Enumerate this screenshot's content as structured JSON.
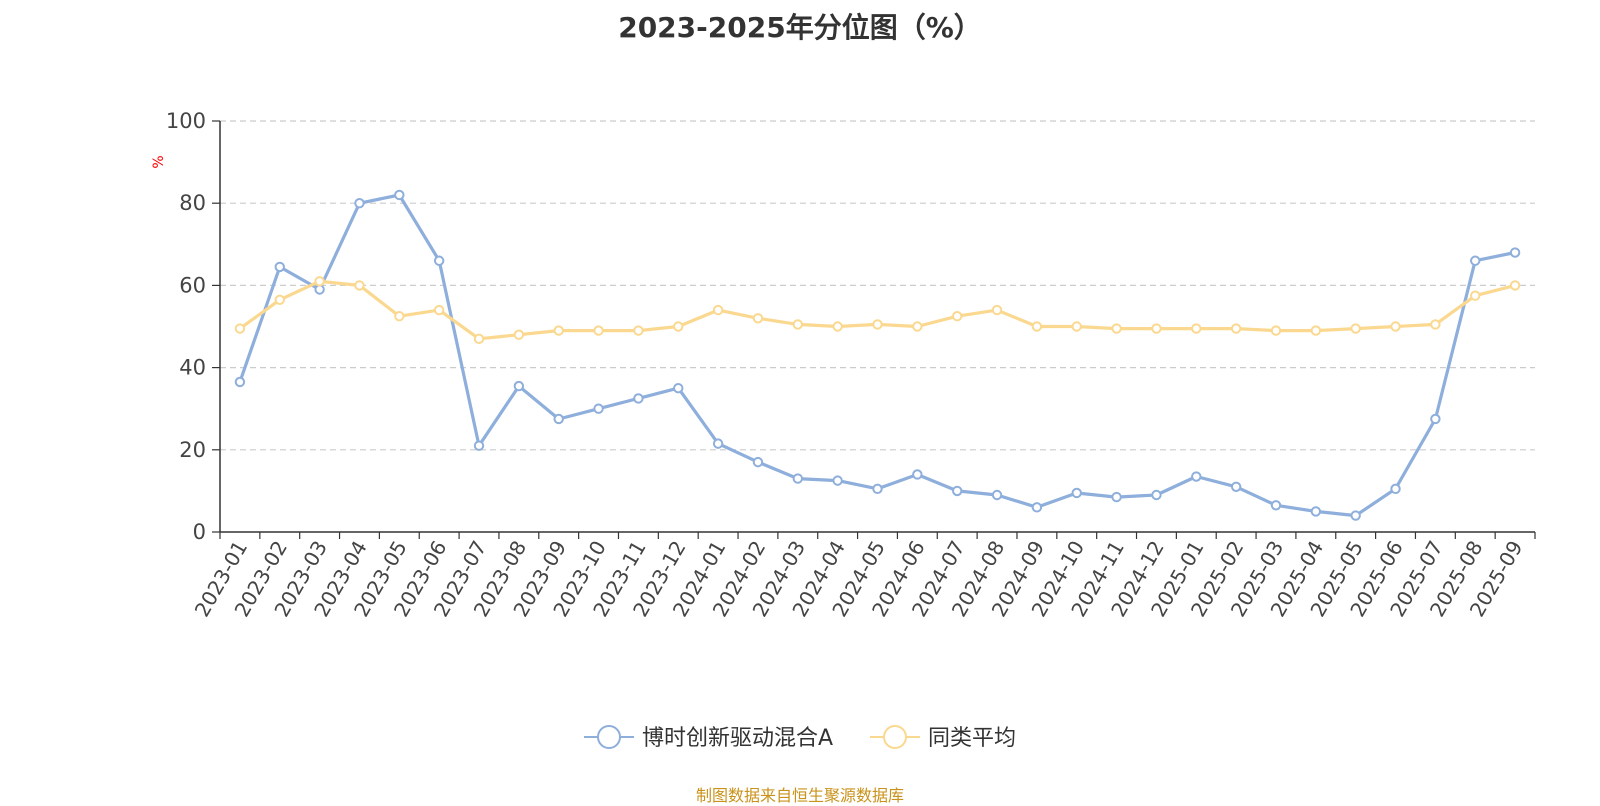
{
  "chart_data": {
    "type": "line",
    "title": "2023-2025年分位图（%）",
    "ylabel": "%",
    "xlabel": "",
    "ylim": [
      0,
      100
    ],
    "yticks": [
      "0",
      "20",
      "40",
      "60",
      "80",
      "100"
    ],
    "grid": "horizontal dashed",
    "legend_position": "bottom-center",
    "categories": [
      "2023-01",
      "2023-02",
      "2023-03",
      "2023-04",
      "2023-05",
      "2023-06",
      "2023-07",
      "2023-08",
      "2023-09",
      "2023-10",
      "2023-11",
      "2023-12",
      "2024-01",
      "2024-02",
      "2024-03",
      "2024-04",
      "2024-05",
      "2024-06",
      "2024-07",
      "2024-08",
      "2024-09",
      "2024-10",
      "2024-11",
      "2024-12",
      "2025-01",
      "2025-02",
      "2025-03",
      "2025-04",
      "2025-05",
      "2025-06",
      "2025-07",
      "2025-08",
      "2025-09"
    ],
    "series": [
      {
        "name": "博时创新驱动混合A",
        "color": "#8eaedb",
        "values": [
          36.5,
          64.5,
          59,
          80,
          82,
          66,
          21,
          35.5,
          27.5,
          30,
          32.5,
          35,
          21.5,
          17,
          13,
          12.5,
          10.5,
          14,
          10,
          9,
          6,
          9.5,
          8.5,
          9,
          13.5,
          11,
          6.5,
          5,
          4,
          10.5,
          27.5,
          66,
          68
        ]
      },
      {
        "name": "同类平均",
        "color": "#fbd88f",
        "values": [
          49.5,
          56.5,
          61,
          60,
          52.5,
          54,
          47,
          48,
          49,
          49,
          49,
          50,
          54,
          52,
          50.5,
          50,
          50.5,
          50,
          52.5,
          54,
          50,
          50,
          49.5,
          49.5,
          49.5,
          49.5,
          49,
          49,
          49.5,
          50,
          50.5,
          57.5,
          60
        ]
      }
    ]
  },
  "source": "制图数据来自恒生聚源数据库"
}
